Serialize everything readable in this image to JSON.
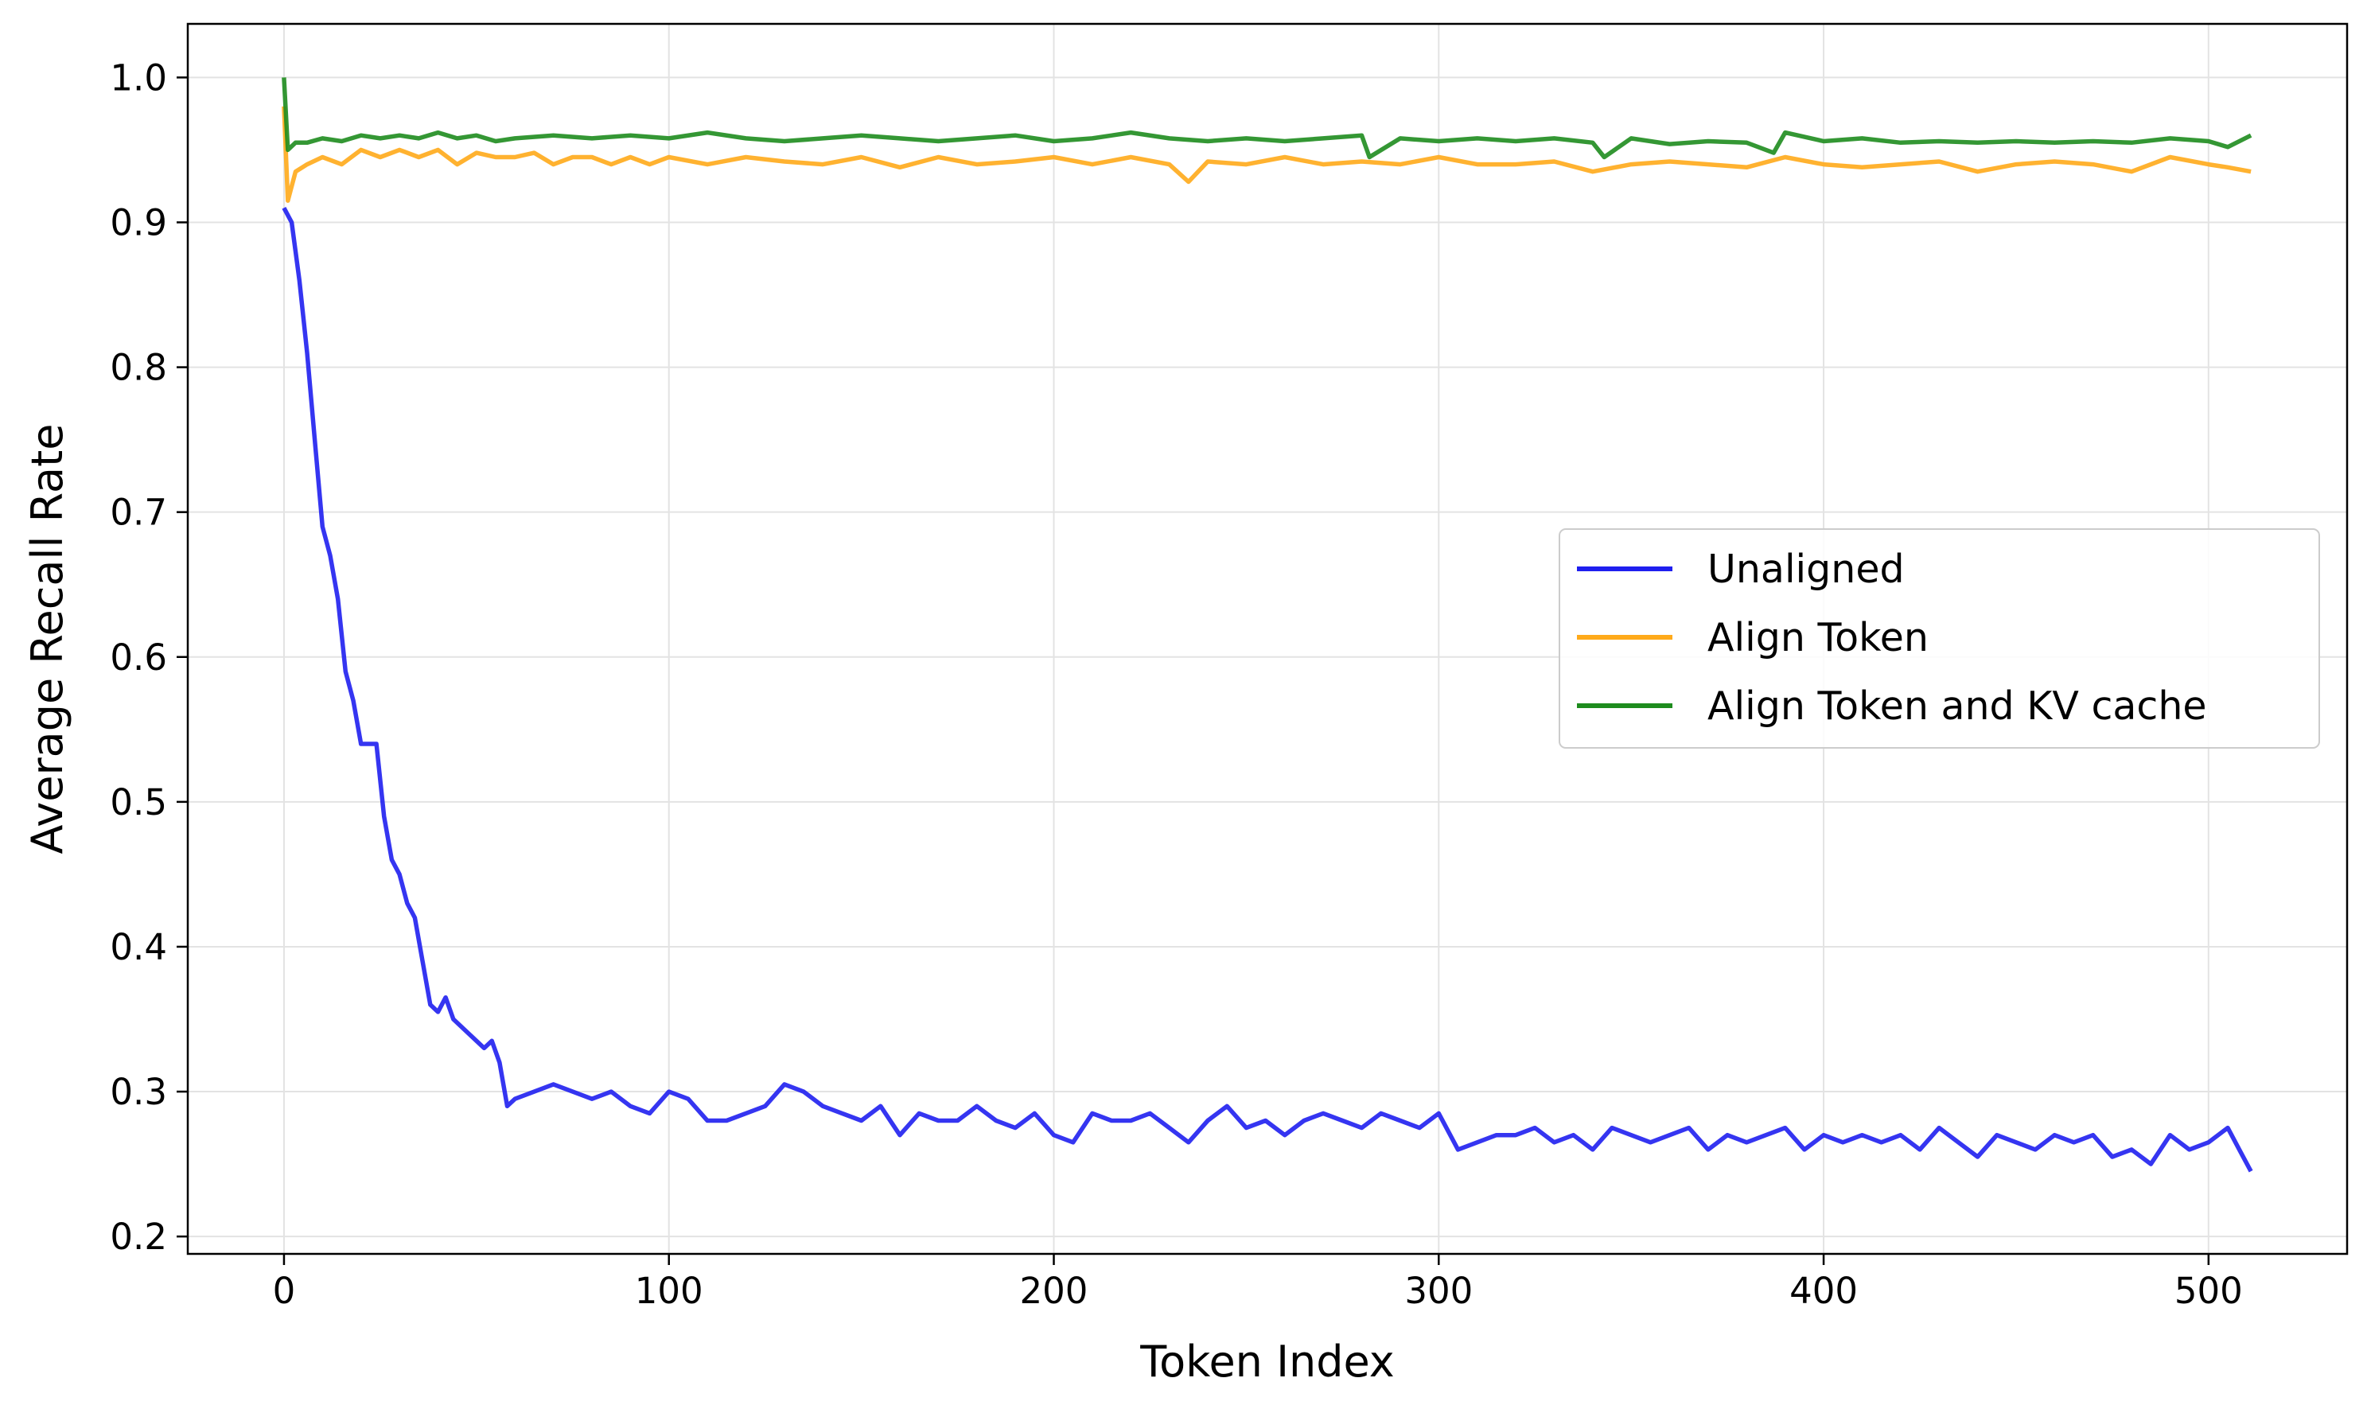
{
  "chart_data": {
    "type": "line",
    "xlabel": "Token Index",
    "ylabel": "Average Recall Rate",
    "xlim": [
      -25,
      536
    ],
    "ylim": [
      0.188,
      1.037
    ],
    "x_ticks": [
      0,
      100,
      200,
      300,
      400,
      500
    ],
    "x_tick_labels": [
      "0",
      "100",
      "200",
      "300",
      "400",
      "500"
    ],
    "y_ticks": [
      0.2,
      0.3,
      0.4,
      0.5,
      0.6,
      0.7,
      0.8,
      0.9,
      1.0
    ],
    "y_tick_labels": [
      "0.2",
      "0.3",
      "0.4",
      "0.5",
      "0.6",
      "0.7",
      "0.8",
      "0.9",
      "1.0"
    ],
    "grid": true,
    "legend_position": "center-right",
    "series": [
      {
        "name": "Unaligned",
        "color": "#1f1fef",
        "x": [
          0,
          2,
          4,
          6,
          8,
          10,
          12,
          14,
          16,
          18,
          20,
          22,
          24,
          26,
          28,
          30,
          32,
          34,
          36,
          38,
          40,
          42,
          44,
          46,
          48,
          50,
          52,
          54,
          56,
          58,
          60,
          65,
          70,
          75,
          80,
          85,
          90,
          95,
          100,
          105,
          110,
          115,
          120,
          125,
          130,
          135,
          140,
          145,
          150,
          155,
          160,
          165,
          170,
          175,
          180,
          185,
          190,
          195,
          200,
          205,
          210,
          215,
          220,
          225,
          230,
          235,
          240,
          245,
          250,
          255,
          260,
          265,
          270,
          275,
          280,
          285,
          290,
          295,
          300,
          305,
          310,
          315,
          320,
          325,
          330,
          335,
          340,
          345,
          350,
          355,
          360,
          365,
          370,
          375,
          380,
          385,
          390,
          395,
          400,
          405,
          410,
          415,
          420,
          425,
          430,
          435,
          440,
          445,
          450,
          455,
          460,
          465,
          470,
          475,
          480,
          485,
          490,
          495,
          500,
          505,
          508,
          511
        ],
        "values": [
          0.91,
          0.9,
          0.86,
          0.81,
          0.75,
          0.69,
          0.67,
          0.64,
          0.59,
          0.57,
          0.54,
          0.54,
          0.54,
          0.49,
          0.46,
          0.45,
          0.43,
          0.42,
          0.39,
          0.36,
          0.355,
          0.365,
          0.35,
          0.345,
          0.34,
          0.335,
          0.33,
          0.335,
          0.32,
          0.29,
          0.295,
          0.3,
          0.305,
          0.3,
          0.295,
          0.3,
          0.29,
          0.285,
          0.3,
          0.295,
          0.28,
          0.28,
          0.285,
          0.29,
          0.305,
          0.3,
          0.29,
          0.285,
          0.28,
          0.29,
          0.27,
          0.285,
          0.28,
          0.28,
          0.29,
          0.28,
          0.275,
          0.285,
          0.27,
          0.265,
          0.285,
          0.28,
          0.28,
          0.285,
          0.275,
          0.265,
          0.28,
          0.29,
          0.275,
          0.28,
          0.27,
          0.28,
          0.285,
          0.28,
          0.275,
          0.285,
          0.28,
          0.275,
          0.285,
          0.26,
          0.265,
          0.27,
          0.27,
          0.275,
          0.265,
          0.27,
          0.26,
          0.275,
          0.27,
          0.265,
          0.27,
          0.275,
          0.26,
          0.27,
          0.265,
          0.27,
          0.275,
          0.26,
          0.27,
          0.265,
          0.27,
          0.265,
          0.27,
          0.26,
          0.275,
          0.265,
          0.255,
          0.27,
          0.265,
          0.26,
          0.27,
          0.265,
          0.27,
          0.255,
          0.26,
          0.25,
          0.27,
          0.26,
          0.265,
          0.275,
          0.26,
          0.245
        ]
      },
      {
        "name": "Align Token",
        "color": "#ffaa1a",
        "x": [
          0,
          1,
          3,
          6,
          10,
          15,
          20,
          25,
          30,
          35,
          40,
          45,
          50,
          55,
          60,
          65,
          70,
          75,
          80,
          85,
          90,
          95,
          100,
          110,
          120,
          130,
          140,
          150,
          160,
          170,
          180,
          190,
          200,
          210,
          220,
          230,
          235,
          240,
          250,
          260,
          270,
          280,
          290,
          300,
          310,
          320,
          330,
          340,
          350,
          360,
          370,
          380,
          390,
          400,
          410,
          420,
          430,
          440,
          450,
          460,
          470,
          480,
          490,
          500,
          505,
          511
        ],
        "values": [
          0.98,
          0.915,
          0.935,
          0.94,
          0.945,
          0.94,
          0.95,
          0.945,
          0.95,
          0.945,
          0.95,
          0.94,
          0.948,
          0.945,
          0.945,
          0.948,
          0.94,
          0.945,
          0.945,
          0.94,
          0.945,
          0.94,
          0.945,
          0.94,
          0.945,
          0.942,
          0.94,
          0.945,
          0.938,
          0.945,
          0.94,
          0.942,
          0.945,
          0.94,
          0.945,
          0.94,
          0.928,
          0.942,
          0.94,
          0.945,
          0.94,
          0.942,
          0.94,
          0.945,
          0.94,
          0.94,
          0.942,
          0.935,
          0.94,
          0.942,
          0.94,
          0.938,
          0.945,
          0.94,
          0.938,
          0.94,
          0.942,
          0.935,
          0.94,
          0.942,
          0.94,
          0.935,
          0.945,
          0.94,
          0.938,
          0.935
        ]
      },
      {
        "name": "Align Token and KV cache",
        "color": "#1e8c1e",
        "x": [
          0,
          1,
          3,
          6,
          10,
          15,
          20,
          25,
          30,
          35,
          40,
          45,
          50,
          55,
          60,
          70,
          80,
          90,
          100,
          110,
          120,
          130,
          140,
          150,
          160,
          170,
          180,
          190,
          200,
          210,
          220,
          230,
          240,
          250,
          260,
          270,
          280,
          282,
          290,
          300,
          310,
          320,
          330,
          340,
          343,
          350,
          360,
          370,
          380,
          387,
          390,
          400,
          410,
          420,
          430,
          440,
          450,
          460,
          470,
          480,
          490,
          500,
          505,
          511
        ],
        "values": [
          1.0,
          0.95,
          0.955,
          0.955,
          0.958,
          0.956,
          0.96,
          0.958,
          0.96,
          0.958,
          0.962,
          0.958,
          0.96,
          0.956,
          0.958,
          0.96,
          0.958,
          0.96,
          0.958,
          0.962,
          0.958,
          0.956,
          0.958,
          0.96,
          0.958,
          0.956,
          0.958,
          0.96,
          0.956,
          0.958,
          0.962,
          0.958,
          0.956,
          0.958,
          0.956,
          0.958,
          0.96,
          0.945,
          0.958,
          0.956,
          0.958,
          0.956,
          0.958,
          0.955,
          0.945,
          0.958,
          0.954,
          0.956,
          0.955,
          0.948,
          0.962,
          0.956,
          0.958,
          0.955,
          0.956,
          0.955,
          0.956,
          0.955,
          0.956,
          0.955,
          0.958,
          0.956,
          0.952,
          0.96
        ]
      }
    ]
  }
}
